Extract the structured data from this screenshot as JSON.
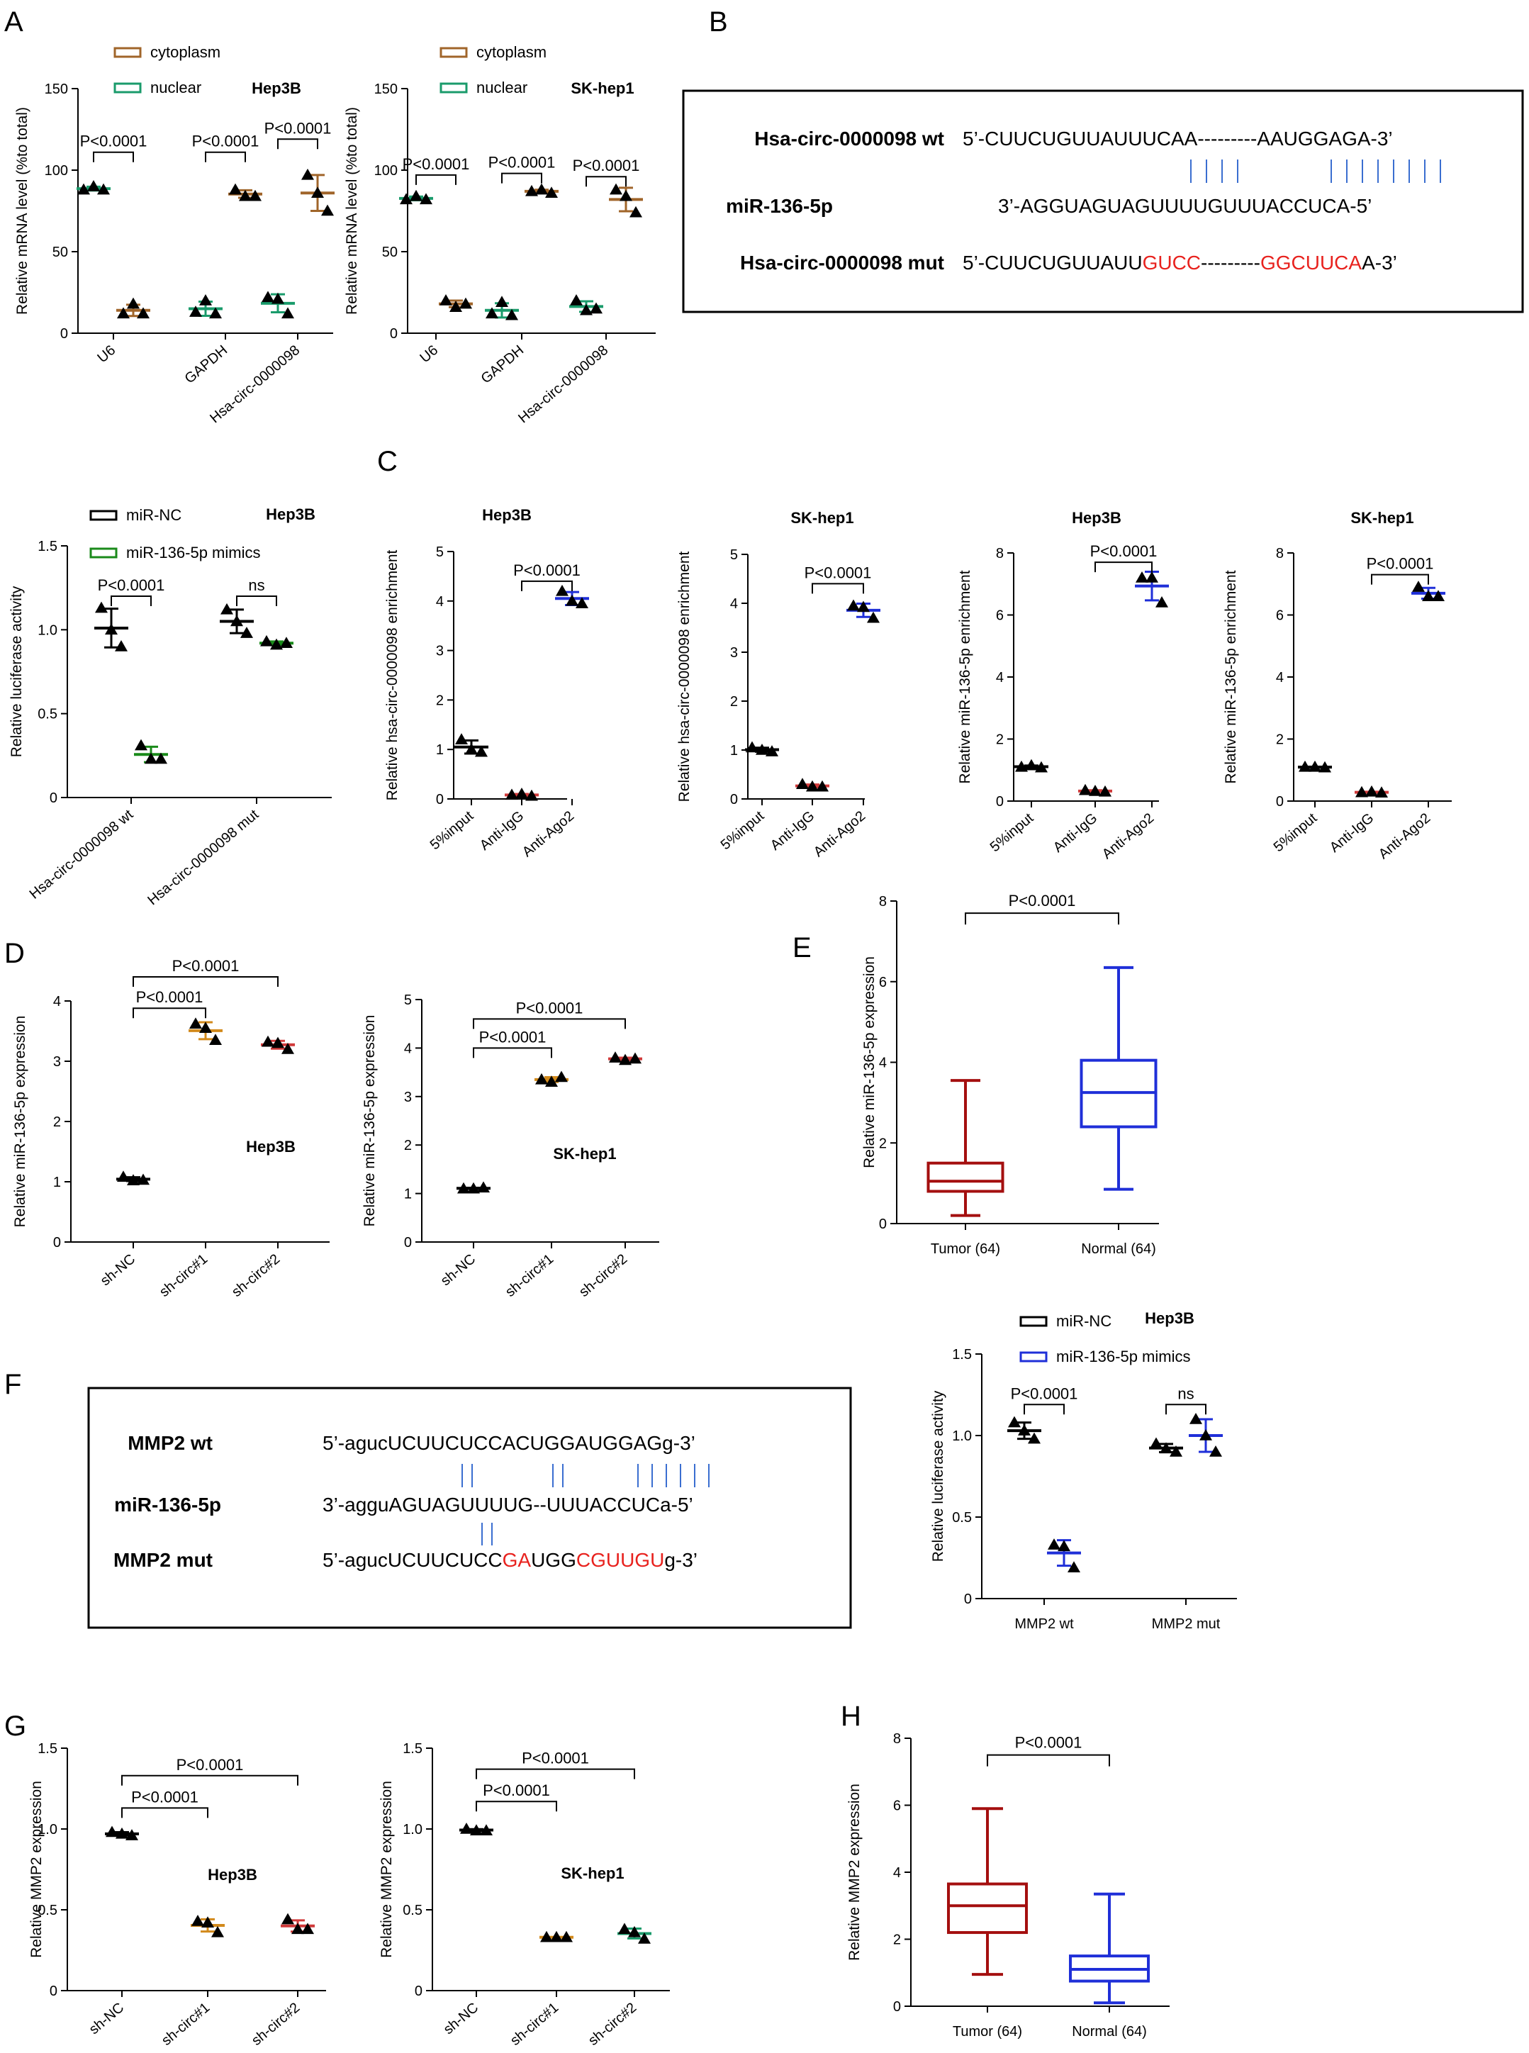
{
  "colors": {
    "black": "#000000",
    "brown": "#a0652a",
    "green": "#1a9b6b",
    "lime": "#1a8a1a",
    "blue": "#1f2fd8",
    "orange": "#d28a1c",
    "red": "#d03a3a",
    "darkred": "#a40f0f",
    "seqred": "#e8221e",
    "line": "#3a6ed0"
  },
  "panels": {
    "A": "A",
    "B": "B",
    "C": "C",
    "D": "D",
    "E": "E",
    "F": "F",
    "G": "G",
    "H": "H"
  },
  "panel_B": {
    "rows": [
      {
        "name": "Hsa-circ-0000098 wt",
        "segments": [
          {
            "t": "5’-CUUCUGUUAUUUCAA---------AAUGGAGA-3’",
            "c": "black"
          }
        ]
      },
      {
        "name": "miR-136-5p",
        "segments": [
          {
            "t": "3’-AGGUAGUAGUUUUGUUUACCUCA-5’",
            "c": "black"
          }
        ]
      },
      {
        "name": "Hsa-circ-0000098 mut",
        "segments": [
          {
            "t": "5’-CUUCUGUUAUU",
            "c": "black"
          },
          {
            "t": "GUCC",
            "c": "seqred"
          },
          {
            "t": "---------",
            "c": "black"
          },
          {
            "t": "GGCUUCA",
            "c": "seqred"
          },
          {
            "t": "A-3’",
            "c": "black"
          }
        ]
      }
    ]
  },
  "panel_F": {
    "rows": [
      {
        "name": "MMP2 wt",
        "segments": [
          {
            "t": "5’-agucUCUUCUCCACUGGAUGGAGg-3’",
            "c": "black"
          }
        ]
      },
      {
        "name": "miR-136-5p",
        "segments": [
          {
            "t": "3’-agguAGUAGUUUUG--UUUACCUCa-5’",
            "c": "black"
          }
        ]
      },
      {
        "name": "MMP2 mut",
        "segments": [
          {
            "t": "5’-agucUCUUCUCC",
            "c": "black"
          },
          {
            "t": "GA",
            "c": "seqred"
          },
          {
            "t": "UGG",
            "c": "black"
          },
          {
            "t": "CGUUGU",
            "c": "seqred"
          },
          {
            "t": "g-3’",
            "c": "black"
          }
        ]
      }
    ]
  },
  "chart_data": [
    {
      "id": "A1",
      "type": "scatter",
      "title": "Hep3B",
      "ylabel": "Relative mRNA  level (%to total)",
      "ylim": [
        0,
        150
      ],
      "yticks": [
        0,
        50,
        100,
        150
      ],
      "categories": [
        "U6",
        "GAPDH",
        "Hsa-circ-0000098"
      ],
      "legend": [
        {
          "name": "cytoplasm",
          "color": "brown"
        },
        {
          "name": "nuclear",
          "color": "green"
        }
      ],
      "series": [
        {
          "name": "nuclear",
          "color": "green",
          "values": [
            [
              88,
              90,
              88
            ],
            [
              13,
              20,
              12
            ],
            [
              22,
              21,
              12
            ]
          ]
        },
        {
          "name": "cytoplasm",
          "color": "brown",
          "values": [
            [
              12,
              18,
              12
            ],
            [
              88,
              84,
              84
            ],
            [
              97,
              86,
              75
            ]
          ]
        }
      ],
      "pvalues": [
        {
          "text": "P<0.0001",
          "cat": 0,
          "y": 111
        },
        {
          "text": "P<0.0001",
          "cat": 1,
          "y": 111
        },
        {
          "text": "P<0.0001",
          "cat": 2,
          "y": 119
        }
      ]
    },
    {
      "id": "A2",
      "type": "scatter",
      "title": "SK-hep1",
      "ylabel": "Relative mRNA  level (%to total)",
      "ylim": [
        0,
        150
      ],
      "yticks": [
        0,
        50,
        100,
        150
      ],
      "categories": [
        "U6",
        "GAPDH",
        "Hsa-circ-0000098"
      ],
      "legend": [
        {
          "name": "cytoplasm",
          "color": "brown"
        },
        {
          "name": "nuclear",
          "color": "green"
        }
      ],
      "series": [
        {
          "name": "nuclear",
          "color": "green",
          "values": [
            [
              82,
              84,
              82
            ],
            [
              12,
              19,
              11
            ],
            [
              20,
              14,
              15
            ]
          ]
        },
        {
          "name": "cytoplasm",
          "color": "brown",
          "values": [
            [
              20,
              16,
              18
            ],
            [
              87,
              88,
              86
            ],
            [
              88,
              84,
              74
            ]
          ]
        }
      ],
      "pvalues": [
        {
          "text": "P<0.0001",
          "cat": 0,
          "y": 97
        },
        {
          "text": "P<0.0001",
          "cat": 1,
          "y": 98
        },
        {
          "text": "P<0.0001",
          "cat": 2,
          "y": 96
        }
      ]
    },
    {
      "id": "Bl",
      "type": "scatter",
      "title": "Hep3B",
      "ylabel": "Relative luciferase activity",
      "ylim": [
        0,
        1.5
      ],
      "yticks": [
        0,
        0.5,
        1.0,
        1.5
      ],
      "categories": [
        "Hsa-circ-0000098 wt",
        "Hsa-circ-0000098 mut"
      ],
      "legend": [
        {
          "name": "miR-NC",
          "color": "black"
        },
        {
          "name": "miR-136-5p mimics",
          "color": "lime"
        }
      ],
      "series": [
        {
          "name": "miR-NC",
          "color": "black",
          "values": [
            [
              1.13,
              1.0,
              0.9
            ],
            [
              1.12,
              1.05,
              0.98
            ]
          ]
        },
        {
          "name": "miR-136-5p mimics",
          "color": "lime",
          "values": [
            [
              0.31,
              0.23,
              0.23
            ],
            [
              0.93,
              0.91,
              0.92
            ]
          ]
        }
      ],
      "pvalues": [
        {
          "text": "P<0.0001",
          "cat": 0,
          "y": 1.2
        },
        {
          "text": "ns",
          "cat": 1,
          "y": 1.2
        }
      ]
    },
    {
      "id": "C1",
      "type": "scatter",
      "title": "Hep3B",
      "ylabel": "Relative hsa-circ-0000098 enrichment",
      "ylim": [
        0,
        5
      ],
      "yticks": [
        0,
        1,
        2,
        3,
        4,
        5
      ],
      "categories": [
        "5%input",
        "Anti-IgG",
        "Anti-Ago2"
      ],
      "series": [
        {
          "colors": [
            "black",
            "red",
            "blue"
          ],
          "values": [
            [
              1.2,
              1.0,
              0.95
            ],
            [
              0.08,
              0.1,
              0.06
            ],
            [
              4.2,
              4.0,
              3.95
            ]
          ]
        }
      ],
      "pvalues": [
        {
          "text": "P<0.0001",
          "from": 1,
          "to": 2,
          "y": 4.4
        }
      ]
    },
    {
      "id": "C2",
      "type": "scatter",
      "title": "SK-hep1",
      "ylabel": "Relative hsa-circ-0000098 enrichment",
      "ylim": [
        0,
        5
      ],
      "yticks": [
        0,
        1,
        2,
        3,
        4,
        5
      ],
      "categories": [
        "5%input",
        "Anti-IgG",
        "Anti-Ago2"
      ],
      "series": [
        {
          "colors": [
            "black",
            "red",
            "blue"
          ],
          "values": [
            [
              1.05,
              1.0,
              0.97
            ],
            [
              0.3,
              0.25,
              0.25
            ],
            [
              3.95,
              3.92,
              3.7
            ]
          ]
        }
      ],
      "pvalues": [
        {
          "text": "P<0.0001",
          "from": 1,
          "to": 2,
          "y": 4.4
        }
      ]
    },
    {
      "id": "C3",
      "type": "scatter",
      "title": "Hep3B",
      "ylabel": "Relative miR-136-5p enrichment",
      "ylim": [
        0,
        8
      ],
      "yticks": [
        0,
        2,
        4,
        6,
        8
      ],
      "categories": [
        "5%input",
        "Anti-IgG",
        "Anti-Ago2"
      ],
      "series": [
        {
          "colors": [
            "black",
            "red",
            "blue"
          ],
          "values": [
            [
              1.1,
              1.15,
              1.08
            ],
            [
              0.35,
              0.32,
              0.3
            ],
            [
              7.2,
              7.2,
              6.4
            ]
          ]
        }
      ],
      "pvalues": [
        {
          "text": "P<0.0001",
          "from": 1,
          "to": 2,
          "y": 7.7
        }
      ]
    },
    {
      "id": "C4",
      "type": "scatter",
      "title": "SK-hep1",
      "ylabel": "Relative miR-136-5p enrichment",
      "ylim": [
        0,
        8
      ],
      "yticks": [
        0,
        2,
        4,
        6,
        8
      ],
      "categories": [
        "5%input",
        "Anti-IgG",
        "Anti-Ago2"
      ],
      "series": [
        {
          "colors": [
            "black",
            "red",
            "blue"
          ],
          "values": [
            [
              1.1,
              1.1,
              1.08
            ],
            [
              0.28,
              0.3,
              0.27
            ],
            [
              6.9,
              6.6,
              6.6
            ]
          ]
        }
      ],
      "pvalues": [
        {
          "text": "P<0.0001",
          "from": 1,
          "to": 2,
          "y": 7.3
        }
      ]
    },
    {
      "id": "D1",
      "type": "scatter",
      "title": "Hep3B",
      "ylabel": "Relative miR-136-5p expression",
      "ylim": [
        0,
        4
      ],
      "yticks": [
        0,
        1,
        2,
        3,
        4
      ],
      "categories": [
        "sh-NC",
        "sh-circ#1",
        "sh-circ#2"
      ],
      "series": [
        {
          "colors": [
            "black",
            "orange",
            "red"
          ],
          "values": [
            [
              1.08,
              1.02,
              1.03
            ],
            [
              3.62,
              3.55,
              3.35
            ],
            [
              3.32,
              3.3,
              3.2
            ]
          ]
        }
      ],
      "pvalues": [
        {
          "text": "P<0.0001",
          "from": 0,
          "to": 1,
          "y": 3.88
        },
        {
          "text": "P<0.0001",
          "from": 0,
          "to": 2,
          "y": 4.4
        }
      ]
    },
    {
      "id": "D2",
      "type": "scatter",
      "title": "SK-hep1",
      "ylabel": "Relative miR-136-5p expression",
      "ylim": [
        0,
        5
      ],
      "yticks": [
        0,
        1,
        2,
        3,
        4,
        5
      ],
      "categories": [
        "sh-NC",
        "sh-circ#1",
        "sh-circ#2"
      ],
      "series": [
        {
          "colors": [
            "black",
            "orange",
            "red"
          ],
          "values": [
            [
              1.1,
              1.1,
              1.12
            ],
            [
              3.35,
              3.3,
              3.4
            ],
            [
              3.8,
              3.75,
              3.78
            ]
          ]
        }
      ],
      "pvalues": [
        {
          "text": "P<0.0001",
          "from": 0,
          "to": 1,
          "y": 4.0
        },
        {
          "text": "P<0.0001",
          "from": 0,
          "to": 2,
          "y": 4.6
        }
      ]
    },
    {
      "id": "E",
      "type": "box",
      "ylabel": "Relative miR-136-5p expression",
      "ylim": [
        0,
        8
      ],
      "yticks": [
        0,
        2,
        4,
        6,
        8
      ],
      "categories": [
        "Tumor (64)",
        "Normal (64)"
      ],
      "boxes": [
        {
          "color": "darkred",
          "min": 0.2,
          "q1": 0.8,
          "median": 1.05,
          "q3": 1.5,
          "max": 3.55
        },
        {
          "color": "blue",
          "min": 0.85,
          "q1": 2.4,
          "median": 3.25,
          "q3": 4.05,
          "max": 6.35
        }
      ],
      "pvalues": [
        {
          "text": "P<0.0001",
          "from": 0,
          "to": 1,
          "y": 7.7
        }
      ]
    },
    {
      "id": "Fl",
      "type": "scatter",
      "title": "Hep3B",
      "ylabel": "Relative luciferase activity",
      "ylim": [
        0,
        1.5
      ],
      "yticks": [
        0,
        0.5,
        1.0,
        1.5
      ],
      "categories": [
        "MMP2 wt",
        "MMP2 mut"
      ],
      "legend": [
        {
          "name": "miR-NC",
          "color": "black"
        },
        {
          "name": "miR-136-5p mimics",
          "color": "blue"
        }
      ],
      "series": [
        {
          "name": "miR-NC",
          "color": "black",
          "values": [
            [
              1.08,
              1.03,
              0.98
            ],
            [
              0.95,
              0.92,
              0.9
            ]
          ]
        },
        {
          "name": "miR-136-5p mimics",
          "color": "blue",
          "values": [
            [
              0.33,
              0.32,
              0.19
            ],
            [
              1.1,
              1.0,
              0.9
            ]
          ]
        }
      ],
      "pvalues": [
        {
          "text": "P<0.0001",
          "cat": 0,
          "y": 1.19
        },
        {
          "text": "ns",
          "cat": 1,
          "y": 1.19
        }
      ]
    },
    {
      "id": "G1",
      "type": "scatter",
      "title": "Hep3B",
      "ylabel": "Relative MMP2 expression",
      "ylim": [
        0,
        1.5
      ],
      "yticks": [
        0,
        0.5,
        1.0,
        1.5
      ],
      "categories": [
        "sh-NC",
        "sh-circ#1",
        "sh-circ#2"
      ],
      "series": [
        {
          "colors": [
            "black",
            "orange",
            "red"
          ],
          "values": [
            [
              0.98,
              0.97,
              0.96
            ],
            [
              0.43,
              0.42,
              0.36
            ],
            [
              0.44,
              0.38,
              0.38
            ]
          ]
        }
      ],
      "pvalues": [
        {
          "text": "P<0.0001",
          "from": 0,
          "to": 1,
          "y": 1.13
        },
        {
          "text": "P<0.0001",
          "from": 0,
          "to": 2,
          "y": 1.33
        }
      ]
    },
    {
      "id": "G2",
      "type": "scatter",
      "title": "SK-hep1",
      "ylabel": "Relative MMP2 expression",
      "ylim": [
        0,
        1.5
      ],
      "yticks": [
        0,
        0.5,
        1.0,
        1.5
      ],
      "categories": [
        "sh-NC",
        "sh-circ#1",
        "sh-circ#2"
      ],
      "series": [
        {
          "colors": [
            "black",
            "orange",
            "green"
          ],
          "values": [
            [
              1.0,
              0.99,
              0.99
            ],
            [
              0.33,
              0.33,
              0.33
            ],
            [
              0.38,
              0.36,
              0.32
            ]
          ]
        }
      ],
      "pvalues": [
        {
          "text": "P<0.0001",
          "from": 0,
          "to": 1,
          "y": 1.17
        },
        {
          "text": "P<0.0001",
          "from": 0,
          "to": 2,
          "y": 1.37
        }
      ]
    },
    {
      "id": "H",
      "type": "box",
      "ylabel": "Relative MMP2 expression",
      "ylim": [
        0,
        8
      ],
      "yticks": [
        0,
        2,
        4,
        6,
        8
      ],
      "categories": [
        "Tumor (64)",
        "Normal (64)"
      ],
      "boxes": [
        {
          "color": "darkred",
          "min": 0.95,
          "q1": 2.2,
          "median": 3.0,
          "q3": 3.65,
          "max": 5.9
        },
        {
          "color": "blue",
          "min": 0.1,
          "q1": 0.75,
          "median": 1.1,
          "q3": 1.5,
          "max": 3.35
        }
      ],
      "pvalues": [
        {
          "text": "P<0.0001",
          "from": 0,
          "to": 1,
          "y": 7.5
        }
      ]
    }
  ]
}
